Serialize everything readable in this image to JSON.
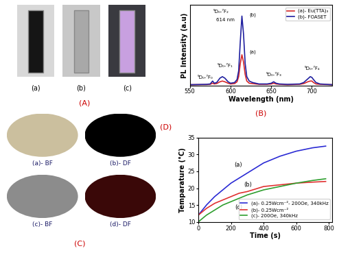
{
  "panels": {
    "A": {
      "label": "(A)",
      "items": [
        "(a)",
        "(b)",
        "(c)"
      ]
    },
    "C": {
      "label": "(C)",
      "items": [
        "(a)- BF",
        "(b)- DF",
        "(c)- BF",
        "(d)- DF"
      ]
    }
  },
  "chart_data": [
    {
      "type": "line",
      "panel_label": "(B)",
      "x_label": "Wavelength (nm)",
      "y_label": "PL Intensity (a.u)",
      "x": [
        550,
        570,
        575,
        578,
        580,
        583,
        587,
        590,
        593,
        597,
        600,
        605,
        608,
        610,
        612,
        614,
        616,
        618,
        620,
        623,
        627,
        635,
        645,
        650,
        653,
        656,
        660,
        670,
        685,
        690,
        695,
        698,
        700,
        702,
        705,
        710,
        725
      ],
      "series": [
        {
          "name": "(a)- Eu(TTA)₃",
          "color": "#d62728",
          "values": [
            1,
            1.2,
            1.5,
            3,
            2,
            2.5,
            5,
            6,
            5,
            3,
            2,
            2.5,
            5,
            12,
            30,
            42,
            32,
            15,
            6,
            3,
            2.5,
            1.5,
            1.5,
            2,
            3,
            2,
            1.5,
            1,
            1.5,
            2.5,
            5,
            6,
            6,
            4,
            2,
            1.5,
            1
          ]
        },
        {
          "name": "(b)- FOASET",
          "color": "#1f1f9f",
          "values": [
            1,
            1.5,
            2,
            6,
            3,
            4,
            10,
            12,
            10,
            5,
            3,
            4,
            8,
            20,
            60,
            95,
            70,
            30,
            12,
            6,
            4,
            2,
            2,
            3,
            5,
            3,
            2,
            1.5,
            2,
            4,
            9,
            12,
            11,
            8,
            4,
            2,
            1
          ]
        }
      ],
      "annotations": [
        "⁵D₀-⁷F₂",
        "614 nm",
        "(b)",
        "(a)",
        "⁵D₀-⁷F₀",
        "⁵D₀-⁷F₁",
        "⁵D₀-⁷F₃",
        "⁵D₀-⁷F₄"
      ],
      "xlim": [
        550,
        725
      ],
      "xticks": [
        550,
        600,
        650,
        700
      ],
      "ylim": [
        0,
        110
      ],
      "yticks": [],
      "tick_labels": "x",
      "legend": "upper right"
    },
    {
      "type": "line",
      "panel_label": "(D)",
      "x_label": "Time (s)",
      "y_label": "Temparature (°C)",
      "x": [
        0,
        50,
        100,
        150,
        200,
        250,
        300,
        400,
        500,
        600,
        700,
        780
      ],
      "series": [
        {
          "name": "(a)- 0.25Wcm⁻²- 200Oe, 340kHz",
          "color": "#2a2ad4",
          "values": [
            12,
            15,
            17.5,
            19.5,
            21.5,
            23,
            24.5,
            27.5,
            29.5,
            31,
            32,
            32.5
          ]
        },
        {
          "name": "(b)- 0.25Wcm⁻²",
          "color": "#e03030",
          "values": [
            12,
            14,
            15.5,
            16.5,
            17.5,
            18.5,
            19,
            20.5,
            21,
            21.5,
            21.8,
            22
          ]
        },
        {
          "name": "(c)- 200Oe, 340kHz",
          "color": "#2e9e2e",
          "values": [
            10,
            12,
            13.5,
            15,
            16,
            17,
            18,
            19.5,
            20.5,
            21.5,
            22.3,
            22.8
          ]
        }
      ],
      "annotations": [
        "(a)",
        "(b)",
        "(c)"
      ],
      "xlim": [
        0,
        820
      ],
      "xticks": [
        0,
        200,
        400,
        600,
        800
      ],
      "ylim": [
        10,
        35
      ],
      "yticks": [
        10,
        15,
        20,
        25,
        30,
        35
      ],
      "legend": "lower right"
    }
  ]
}
